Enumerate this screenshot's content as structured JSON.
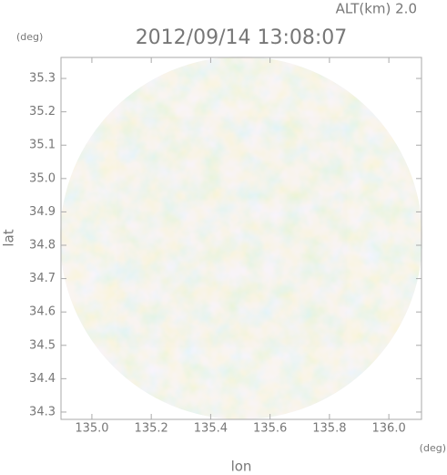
{
  "chart_data": {
    "type": "radar-map",
    "title": "2012/09/14 13:08:07",
    "subtitle": "ALT(km) 2.0",
    "xlabel": "lon",
    "ylabel": "lat",
    "xunit": "(deg)",
    "yunit": "(deg)",
    "xlim": [
      134.896,
      136.11
    ],
    "ylim": [
      34.278,
      35.363
    ],
    "xticks": [
      {
        "value": 135,
        "label": "135.0"
      },
      135.2,
      135.4,
      135.6,
      135.8,
      {
        "value": 136,
        "label": "136.0"
      }
    ],
    "yticks": [
      34.3,
      34.4,
      34.5,
      34.6,
      34.7,
      34.8,
      34.9,
      {
        "value": 35,
        "label": "35.0"
      },
      35.1,
      35.2,
      35.3
    ]
  }
}
